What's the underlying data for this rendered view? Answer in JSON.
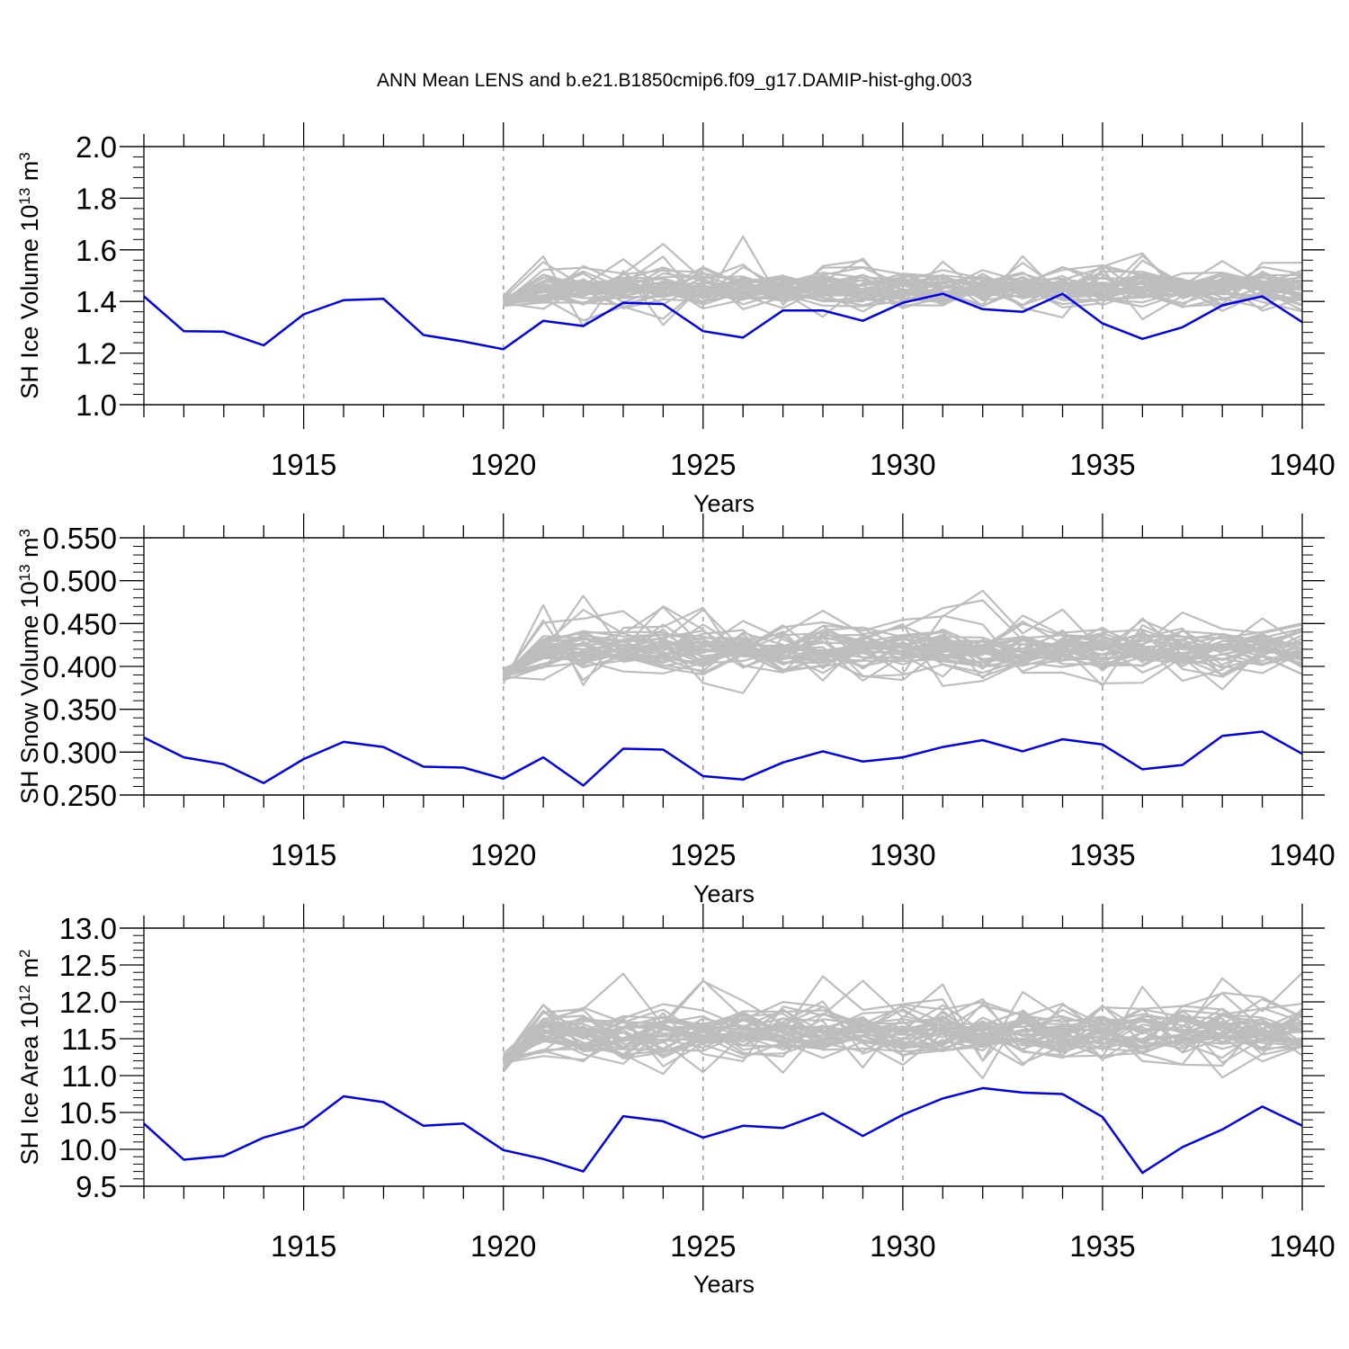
{
  "figure": {
    "title": "ANN Mean LENS and b.e21.B1850cmip6.f09_g17.DAMIP-hist-ghg.003"
  },
  "chart_data": [
    {
      "type": "line",
      "title": "ANN Mean LENS and b.e21.B1850cmip6.f09_g17.DAMIP-hist-ghg.003",
      "xlabel": "Years",
      "ylabel": {
        "base": "SH Ice Volume 10",
        "exp": "13",
        "unit": " m",
        "unit_exp": "3"
      },
      "xlim": [
        1911,
        1940
      ],
      "ylim": [
        1.0,
        2.0
      ],
      "xticks": [
        1915,
        1920,
        1925,
        1930,
        1935,
        1940
      ],
      "yticks": [
        1.0,
        1.2,
        1.4,
        1.6,
        1.8,
        2.0
      ],
      "ytick_decimals": 1,
      "grid": "dashed vertical at x ticks",
      "series": [
        {
          "name": "b.e21.B1850cmip6.f09_g17.DAMIP-hist-ghg.003",
          "color": "#0000ee",
          "x": [
            1911,
            1912,
            1913,
            1914,
            1915,
            1916,
            1917,
            1918,
            1919,
            1920,
            1921,
            1922,
            1923,
            1924,
            1925,
            1926,
            1927,
            1928,
            1929,
            1930,
            1931,
            1932,
            1933,
            1934,
            1935,
            1936,
            1937,
            1938,
            1939,
            1940
          ],
          "y": [
            1.42,
            1.285,
            1.283,
            1.23,
            1.35,
            1.405,
            1.41,
            1.27,
            1.245,
            1.215,
            1.325,
            1.305,
            1.395,
            1.39,
            1.285,
            1.26,
            1.365,
            1.365,
            1.325,
            1.395,
            1.43,
            1.37,
            1.36,
            1.43,
            1.315,
            1.255,
            1.3,
            1.385,
            1.42,
            1.32
          ]
        }
      ],
      "ensemble": {
        "name": "LENS",
        "color": "#bdbdbd",
        "members": 40,
        "x_start": 1920,
        "x_end": 1940,
        "start_value": 1.4,
        "mean": 1.45,
        "spread": 0.06,
        "outlier_spread": 0.13
      }
    },
    {
      "type": "line",
      "title": "",
      "xlabel": "Years",
      "ylabel": {
        "base": "SH Snow Volume 10",
        "exp": "13",
        "unit": " m",
        "unit_exp": "3"
      },
      "xlim": [
        1911,
        1940
      ],
      "ylim": [
        0.25,
        0.55
      ],
      "xticks": [
        1915,
        1920,
        1925,
        1930,
        1935,
        1940
      ],
      "yticks": [
        0.25,
        0.3,
        0.35,
        0.4,
        0.45,
        0.5,
        0.55
      ],
      "ytick_decimals": 3,
      "grid": "dashed vertical at x ticks",
      "series": [
        {
          "name": "b.e21.B1850cmip6.f09_g17.DAMIP-hist-ghg.003",
          "color": "#0000ee",
          "x": [
            1911,
            1912,
            1913,
            1914,
            1915,
            1916,
            1917,
            1918,
            1919,
            1920,
            1921,
            1922,
            1923,
            1924,
            1925,
            1926,
            1927,
            1928,
            1929,
            1930,
            1931,
            1932,
            1933,
            1934,
            1935,
            1936,
            1937,
            1938,
            1939,
            1940
          ],
          "y": [
            0.317,
            0.294,
            0.286,
            0.264,
            0.292,
            0.312,
            0.306,
            0.283,
            0.282,
            0.269,
            0.294,
            0.261,
            0.304,
            0.303,
            0.272,
            0.268,
            0.288,
            0.301,
            0.289,
            0.294,
            0.306,
            0.314,
            0.301,
            0.315,
            0.309,
            0.28,
            0.285,
            0.319,
            0.324,
            0.298
          ]
        }
      ],
      "ensemble": {
        "name": "LENS",
        "color": "#bdbdbd",
        "members": 40,
        "x_start": 1920,
        "x_end": 1940,
        "start_value": 0.39,
        "mean": 0.42,
        "spread": 0.022,
        "outlier_spread": 0.05
      }
    },
    {
      "type": "line",
      "title": "",
      "xlabel": "Years",
      "ylabel": {
        "base": "SH Ice Area 10",
        "exp": "12",
        "unit": " m",
        "unit_exp": "2"
      },
      "xlim": [
        1911,
        1940
      ],
      "ylim": [
        9.5,
        13.0
      ],
      "xticks": [
        1915,
        1920,
        1925,
        1930,
        1935,
        1940
      ],
      "yticks": [
        9.5,
        10.0,
        10.5,
        11.0,
        11.5,
        12.0,
        12.5,
        13.0
      ],
      "ytick_decimals": 1,
      "grid": "dashed vertical at x ticks",
      "series": [
        {
          "name": "b.e21.B1850cmip6.f09_g17.DAMIP-hist-ghg.003",
          "color": "#0000ee",
          "x": [
            1911,
            1912,
            1913,
            1914,
            1915,
            1916,
            1917,
            1918,
            1919,
            1920,
            1921,
            1922,
            1923,
            1924,
            1925,
            1926,
            1927,
            1928,
            1929,
            1930,
            1931,
            1932,
            1933,
            1934,
            1935,
            1936,
            1937,
            1938,
            1939,
            1940
          ],
          "y": [
            10.35,
            9.86,
            9.91,
            10.16,
            10.31,
            10.72,
            10.64,
            10.32,
            10.35,
            9.99,
            9.87,
            9.7,
            10.45,
            10.38,
            10.16,
            10.32,
            10.29,
            10.49,
            10.18,
            10.47,
            10.69,
            10.83,
            10.77,
            10.75,
            10.44,
            9.68,
            10.03,
            10.27,
            10.58,
            10.32
          ]
        }
      ],
      "ensemble": {
        "name": "LENS",
        "color": "#bdbdbd",
        "members": 40,
        "x_start": 1920,
        "x_end": 1940,
        "start_value": 11.2,
        "mean": 11.55,
        "spread": 0.32,
        "outlier_spread": 0.6
      }
    }
  ]
}
